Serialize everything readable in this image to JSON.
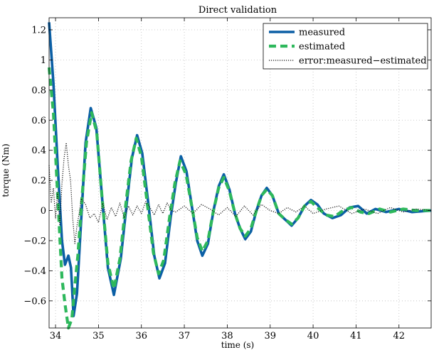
{
  "chart_data": {
    "type": "line",
    "title": "Direct validation",
    "xlabel": "time (s)",
    "ylabel": "torque (Nm)",
    "xlim": [
      33.85,
      42.75
    ],
    "ylim": [
      -0.78,
      1.28
    ],
    "xticks": [
      34,
      35,
      36,
      37,
      38,
      39,
      40,
      41,
      42
    ],
    "xtick_labels": [
      "34",
      "35",
      "36",
      "37",
      "38",
      "39",
      "40",
      "41",
      "42"
    ],
    "yticks": [
      -0.6,
      -0.4,
      -0.2,
      0,
      0.2,
      0.4,
      0.6,
      0.8,
      1,
      1.2
    ],
    "ytick_labels": [
      "−0.6",
      "−0.4",
      "−0.2",
      "0",
      "0.2",
      "0.4",
      "0.6",
      "0.8",
      "1",
      "1.2"
    ],
    "grid": true,
    "legend_position": "top-right",
    "series": [
      {
        "name": "measured",
        "color": "#0b5fa5",
        "style": "solid",
        "x": [
          33.85,
          33.95,
          34.05,
          34.15,
          34.22,
          34.3,
          34.36,
          34.42,
          34.5,
          34.6,
          34.7,
          34.82,
          34.95,
          35.08,
          35.22,
          35.36,
          35.52,
          35.66,
          35.78,
          35.9,
          36.02,
          36.16,
          36.3,
          36.42,
          36.55,
          36.68,
          36.8,
          36.92,
          37.05,
          37.18,
          37.3,
          37.42,
          37.55,
          37.68,
          37.8,
          37.92,
          38.05,
          38.18,
          38.3,
          38.42,
          38.55,
          38.68,
          38.8,
          38.92,
          39.05,
          39.2,
          39.35,
          39.5,
          39.65,
          39.8,
          39.95,
          40.1,
          40.25,
          40.45,
          40.65,
          40.85,
          41.05,
          41.25,
          41.45,
          41.7,
          42.0,
          42.3,
          42.75
        ],
        "y": [
          1.25,
          0.85,
          0.3,
          -0.2,
          -0.36,
          -0.3,
          -0.38,
          -0.7,
          -0.55,
          -0.05,
          0.45,
          0.68,
          0.55,
          0.1,
          -0.38,
          -0.56,
          -0.32,
          0.05,
          0.35,
          0.5,
          0.38,
          0.05,
          -0.3,
          -0.45,
          -0.35,
          -0.05,
          0.18,
          0.36,
          0.26,
          0.02,
          -0.2,
          -0.3,
          -0.22,
          0.0,
          0.16,
          0.24,
          0.14,
          -0.02,
          -0.12,
          -0.19,
          -0.14,
          0.0,
          0.1,
          0.15,
          0.1,
          -0.02,
          -0.06,
          -0.1,
          -0.05,
          0.03,
          0.07,
          0.04,
          -0.02,
          -0.05,
          -0.03,
          0.02,
          0.03,
          -0.02,
          0.01,
          -0.01,
          0.01,
          -0.01,
          0.0
        ]
      },
      {
        "name": "estimated",
        "color": "#2eb85c",
        "style": "dashed",
        "x": [
          33.85,
          33.95,
          34.05,
          34.15,
          34.22,
          34.3,
          34.38,
          34.45,
          34.52,
          34.62,
          34.72,
          34.84,
          34.96,
          35.08,
          35.22,
          35.36,
          35.5,
          35.64,
          35.76,
          35.88,
          36.0,
          36.14,
          36.28,
          36.4,
          36.52,
          36.66,
          36.78,
          36.9,
          37.04,
          37.18,
          37.3,
          37.42,
          37.55,
          37.68,
          37.8,
          37.92,
          38.05,
          38.18,
          38.3,
          38.42,
          38.55,
          38.68,
          38.8,
          38.92,
          39.05,
          39.2,
          39.35,
          39.5,
          39.65,
          39.8,
          39.95,
          40.1,
          40.3,
          40.5,
          40.7,
          40.9,
          41.1,
          41.3,
          41.55,
          41.8,
          42.1,
          42.4,
          42.75
        ],
        "y": [
          0.95,
          0.65,
          0.1,
          -0.45,
          -0.62,
          -0.78,
          -0.72,
          -0.5,
          -0.3,
          0.1,
          0.45,
          0.65,
          0.52,
          0.1,
          -0.35,
          -0.52,
          -0.32,
          0.05,
          0.33,
          0.48,
          0.36,
          0.04,
          -0.28,
          -0.42,
          -0.33,
          -0.04,
          0.18,
          0.33,
          0.24,
          0.02,
          -0.18,
          -0.27,
          -0.2,
          0.0,
          0.15,
          0.22,
          0.13,
          -0.02,
          -0.12,
          -0.17,
          -0.12,
          0.0,
          0.1,
          0.14,
          0.1,
          -0.02,
          -0.06,
          -0.09,
          -0.05,
          0.03,
          0.06,
          0.02,
          -0.03,
          -0.04,
          0.0,
          0.02,
          -0.01,
          -0.02,
          0.01,
          -0.01,
          0.01,
          0.0,
          0.0
        ]
      },
      {
        "name": "error:measured−estimated",
        "color": "#111111",
        "style": "dotted",
        "x": [
          33.85,
          33.9,
          33.95,
          34.0,
          34.05,
          34.1,
          34.15,
          34.2,
          34.25,
          34.3,
          34.35,
          34.4,
          34.45,
          34.5,
          34.55,
          34.6,
          34.7,
          34.8,
          34.9,
          35.0,
          35.1,
          35.2,
          35.3,
          35.4,
          35.5,
          35.6,
          35.7,
          35.8,
          35.9,
          36.0,
          36.1,
          36.2,
          36.3,
          36.4,
          36.5,
          36.6,
          36.7,
          36.8,
          37.0,
          37.2,
          37.4,
          37.6,
          37.8,
          38.0,
          38.2,
          38.4,
          38.6,
          38.8,
          39.0,
          39.2,
          39.4,
          39.6,
          39.8,
          40.0,
          40.3,
          40.6,
          40.9,
          41.2,
          41.5,
          41.8,
          42.1,
          42.4,
          42.75
        ],
        "y": [
          0.3,
          0.05,
          0.15,
          -0.05,
          0.12,
          -0.1,
          0.18,
          0.35,
          0.45,
          0.3,
          0.2,
          -0.05,
          -0.22,
          -0.1,
          -0.02,
          0.08,
          0.04,
          -0.05,
          -0.02,
          -0.08,
          0.05,
          -0.06,
          0.02,
          -0.04,
          0.05,
          -0.05,
          0.03,
          -0.03,
          0.03,
          -0.02,
          0.06,
          0.02,
          -0.03,
          0.04,
          -0.02,
          0.05,
          0.0,
          -0.01,
          0.03,
          -0.02,
          0.04,
          0.01,
          -0.03,
          0.02,
          -0.04,
          0.03,
          -0.03,
          0.04,
          0.0,
          -0.02,
          0.02,
          -0.01,
          0.03,
          -0.02,
          0.01,
          0.03,
          -0.02,
          0.01,
          -0.02,
          0.02,
          -0.01,
          0.01,
          0.0
        ]
      }
    ]
  }
}
